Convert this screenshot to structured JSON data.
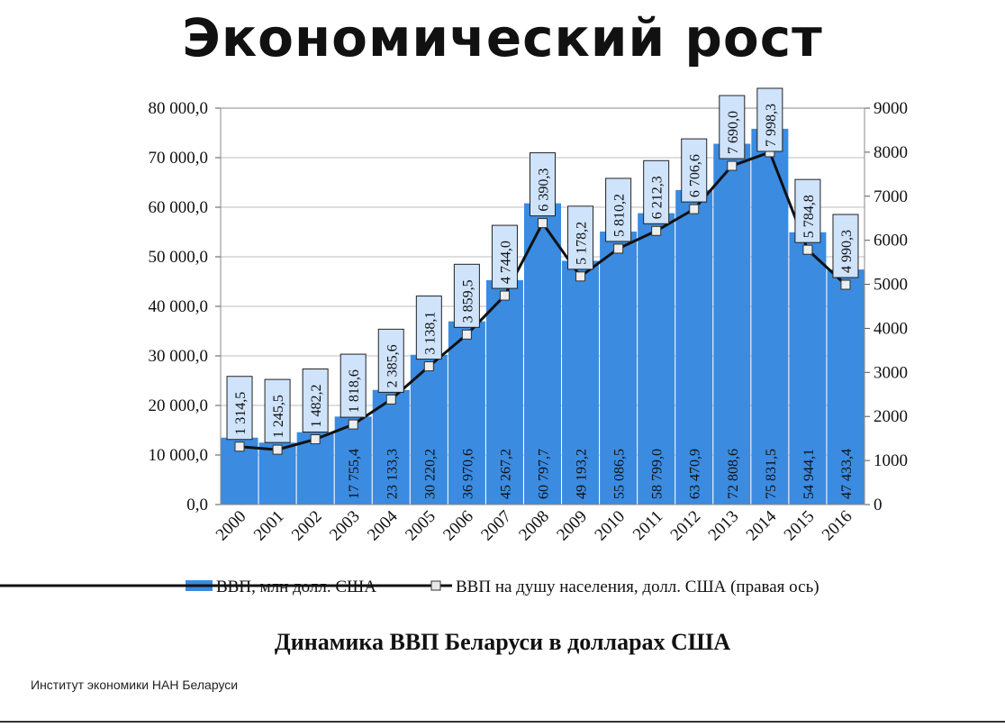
{
  "page": {
    "title": "Экономический рост",
    "caption": "Динамика ВВП Беларуси в долларах США",
    "source": "Институт экономики НАН Беларуси"
  },
  "chart_data": {
    "type": "bar+line",
    "categories": [
      "2000",
      "2001",
      "2002",
      "2003",
      "2004",
      "2005",
      "2006",
      "2007",
      "2008",
      "2009",
      "2010",
      "2011",
      "2012",
      "2013",
      "2014",
      "2015",
      "2016"
    ],
    "series": [
      {
        "name": "ВВП, млн долл. США",
        "type": "bar",
        "axis": "left",
        "color": "#3b8be0",
        "values": [
          13500,
          12500,
          14600,
          17755.4,
          23133.3,
          30220.2,
          36970.6,
          45267.2,
          60797.7,
          49193.2,
          55086.5,
          58799.0,
          63470.9,
          72808.6,
          75831.5,
          54944.1,
          47433.4
        ],
        "labels": [
          "",
          "",
          "",
          "17 755,4",
          "23 133,3",
          "30 220,2",
          "36 970,6",
          "45 267,2",
          "60 797,7",
          "49 193,2",
          "55 086,5",
          "58 799,0",
          "63 470,9",
          "72 808,6",
          "75 831,5",
          "54 944,1",
          "47 433,4"
        ]
      },
      {
        "name": "ВВП на душу населения, долл. США (правая ось)",
        "type": "line",
        "axis": "right",
        "color": "#111111",
        "values": [
          1314.5,
          1245.5,
          1482.2,
          1818.6,
          2385.6,
          3138.1,
          3859.5,
          4744.0,
          6390.3,
          5178.2,
          5810.2,
          6212.3,
          6706.6,
          7690.0,
          7998.3,
          5784.8,
          4990.3
        ],
        "labels": [
          "1 314,5",
          "1 245,5",
          "1 482,2",
          "1 818,6",
          "2 385,6",
          "3 138,1",
          "3 859,5",
          "4 744,0",
          "6 390,3",
          "5 178,2",
          "5 810,2",
          "6 212,3",
          "6 706,6",
          "7 690,0",
          "7 998,3",
          "5 784,8",
          "4 990,3"
        ]
      }
    ],
    "left_axis": {
      "ylim": [
        0,
        80000
      ],
      "ticks": [
        "0,0",
        "10 000,0",
        "20 000,0",
        "30 000,0",
        "40 000,0",
        "50 000,0",
        "60 000,0",
        "70 000,0",
        "80 000,0"
      ]
    },
    "right_axis": {
      "ylim": [
        0,
        9000
      ],
      "ticks": [
        "0",
        "1000",
        "2000",
        "3000",
        "4000",
        "5000",
        "6000",
        "7000",
        "8000",
        "9000"
      ]
    },
    "grid": true,
    "legend": "bottom"
  }
}
